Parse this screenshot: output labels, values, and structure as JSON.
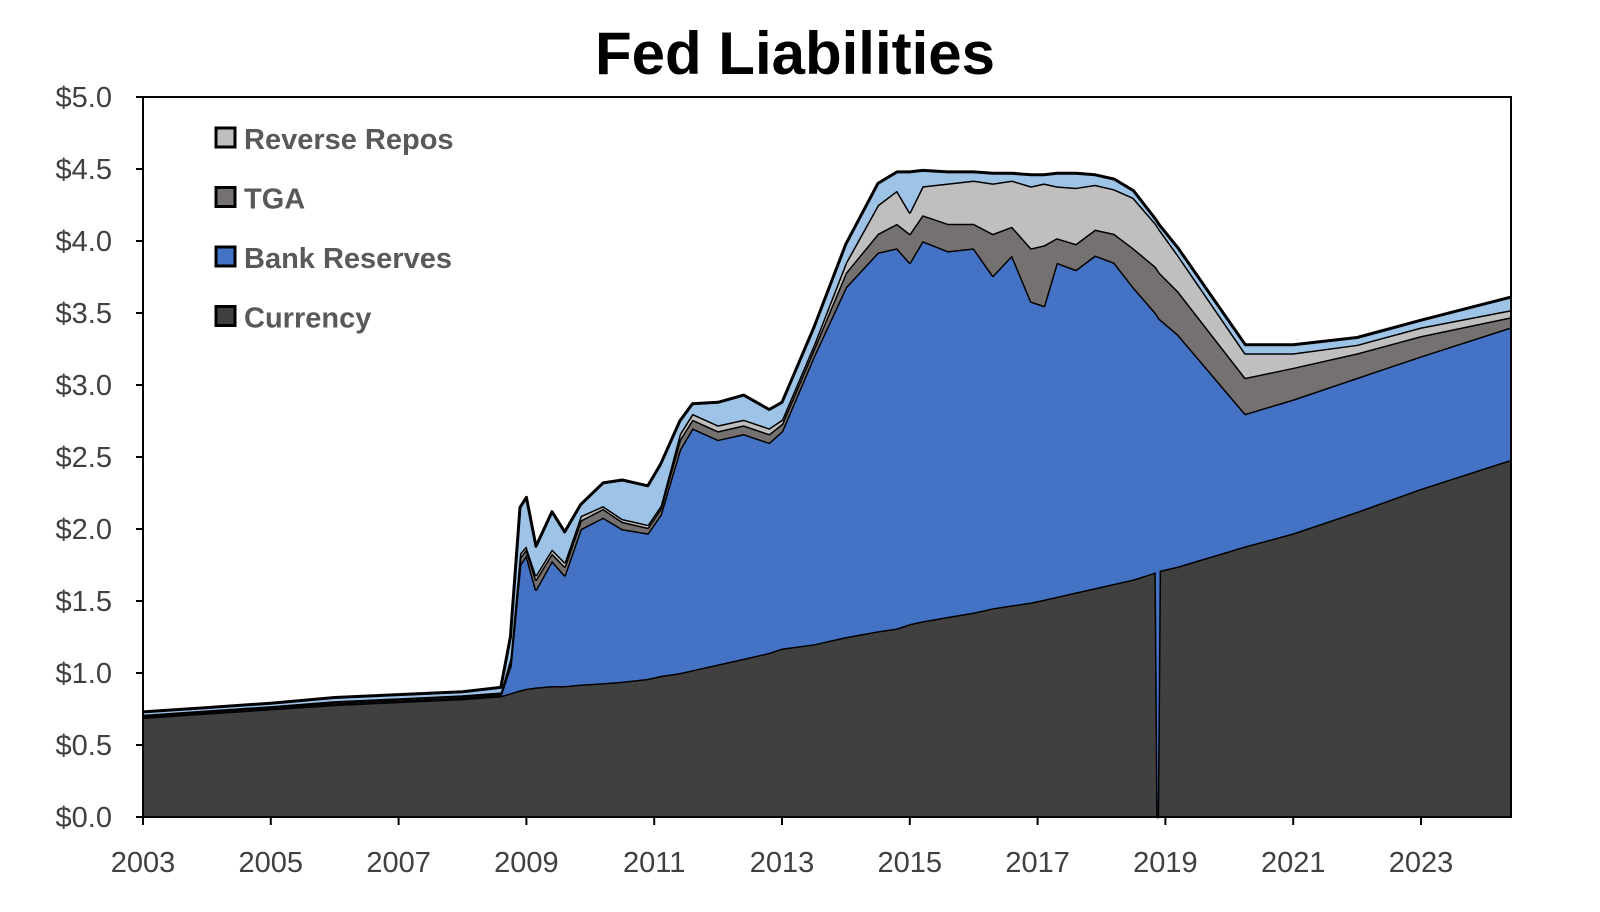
{
  "chart_data": {
    "type": "area",
    "stacked": true,
    "title": "Fed Liabilities",
    "xlabel": "",
    "ylabel": "",
    "xlim": [
      2003,
      2024.4
    ],
    "ylim": [
      0,
      5
    ],
    "x_ticks": [
      "2003",
      "2005",
      "2007",
      "2009",
      "2011",
      "2013",
      "2015",
      "2017",
      "2019",
      "2021",
      "2023"
    ],
    "y_ticks": [
      "$0.0",
      "$0.5",
      "$1.0",
      "$1.5",
      "$2.0",
      "$2.5",
      "$3.0",
      "$3.5",
      "$4.0",
      "$4.5",
      "$5.0"
    ],
    "grid": false,
    "legend_position": "top-left",
    "legend": [
      "Reverse Repos",
      "TGA",
      "Bank Reserves",
      "Currency"
    ],
    "x": [
      2003,
      2004,
      2005,
      2006,
      2007,
      2008,
      2008.6,
      2008.75,
      2008.9,
      2009.0,
      2009.15,
      2009.4,
      2009.6,
      2009.85,
      2010.2,
      2010.5,
      2010.9,
      2011.1,
      2011.4,
      2011.6,
      2012.0,
      2012.4,
      2012.8,
      2013.0,
      2013.5,
      2014.0,
      2014.5,
      2014.8,
      2015.0,
      2015.2,
      2015.6,
      2016.0,
      2016.3,
      2016.6,
      2016.9,
      2017.1,
      2017.3,
      2017.6,
      2017.9,
      2018.2,
      2018.5,
      2018.85,
      2018.88,
      2018.91,
      2019.2,
      2020.25,
      2021,
      2022,
      2023,
      2024.4
    ],
    "series": [
      {
        "name": "Currency",
        "color": "#404040",
        "values": [
          0.69,
          0.72,
          0.75,
          0.78,
          0.8,
          0.82,
          0.84,
          0.86,
          0.88,
          0.89,
          0.9,
          0.91,
          0.91,
          0.92,
          0.93,
          0.94,
          0.96,
          0.98,
          1.0,
          1.02,
          1.06,
          1.1,
          1.14,
          1.17,
          1.2,
          1.25,
          1.29,
          1.31,
          1.34,
          1.36,
          1.39,
          1.42,
          1.45,
          1.47,
          1.49,
          1.51,
          1.53,
          1.56,
          1.59,
          1.62,
          1.65,
          1.7,
          0,
          1.71,
          1.74,
          1.88,
          1.97,
          2.12,
          2.28,
          2.48
        ]
      },
      {
        "name": "Bank Reserves",
        "color": "#4472C4",
        "values": [
          0.01,
          0.01,
          0.01,
          0.01,
          0.01,
          0.01,
          0.01,
          0.19,
          0.87,
          0.93,
          0.68,
          0.87,
          0.77,
          1.08,
          1.15,
          1.06,
          1.01,
          1.12,
          1.55,
          1.68,
          1.56,
          1.56,
          1.46,
          1.51,
          2.0,
          2.43,
          2.63,
          2.64,
          2.51,
          2.64,
          2.54,
          2.53,
          2.31,
          2.43,
          2.09,
          2.04,
          2.32,
          2.24,
          2.31,
          2.23,
          2.03,
          1.8,
          3.48,
          1.75,
          1.61,
          0.92,
          0.93,
          0.93,
          0.92,
          0.92
        ]
      },
      {
        "name": "TGA",
        "color": "#767171",
        "values": [
          0.005,
          0.005,
          0.005,
          0.01,
          0.01,
          0.01,
          0.01,
          0.03,
          0.05,
          0.04,
          0.07,
          0.05,
          0.06,
          0.06,
          0.06,
          0.05,
          0.04,
          0.04,
          0.07,
          0.06,
          0.06,
          0.06,
          0.06,
          0.05,
          0.05,
          0.1,
          0.13,
          0.17,
          0.2,
          0.18,
          0.19,
          0.17,
          0.29,
          0.2,
          0.37,
          0.42,
          0.17,
          0.18,
          0.18,
          0.2,
          0.27,
          0.32,
          0.32,
          0.32,
          0.3,
          0.25,
          0.22,
          0.17,
          0.14,
          0.07
        ]
      },
      {
        "name": "Reverse Repos",
        "color": "#BFBFBF",
        "values": [
          0.005,
          0.005,
          0.005,
          0.005,
          0.005,
          0.005,
          0.005,
          0.02,
          0.03,
          0.02,
          0.03,
          0.03,
          0.03,
          0.03,
          0.02,
          0.02,
          0.02,
          0.02,
          0.04,
          0.04,
          0.04,
          0.04,
          0.04,
          0.03,
          0.03,
          0.07,
          0.2,
          0.23,
          0.15,
          0.2,
          0.28,
          0.3,
          0.35,
          0.32,
          0.43,
          0.43,
          0.36,
          0.39,
          0.31,
          0.31,
          0.35,
          0.3,
          0.3,
          0.3,
          0.25,
          0.17,
          0.1,
          0.06,
          0.06,
          0.05
        ]
      },
      {
        "color": "#9DC3E6",
        "values": [
          0.02,
          0.02,
          0.02,
          0.025,
          0.025,
          0.025,
          0.035,
          0.15,
          0.32,
          0.34,
          0.2,
          0.26,
          0.21,
          0.08,
          0.16,
          0.27,
          0.27,
          0.29,
          0.09,
          0.07,
          0.16,
          0.17,
          0.13,
          0.12,
          0.12,
          0.13,
          0.15,
          0.13,
          0.28,
          0.11,
          0.08,
          0.06,
          0.07,
          0.05,
          0.08,
          0.06,
          0.09,
          0.1,
          0.07,
          0.07,
          0.05,
          0.03,
          0.03,
          0.03,
          0.05,
          0.06,
          0.06,
          0.05,
          0.05,
          0.09
        ]
      }
    ]
  }
}
